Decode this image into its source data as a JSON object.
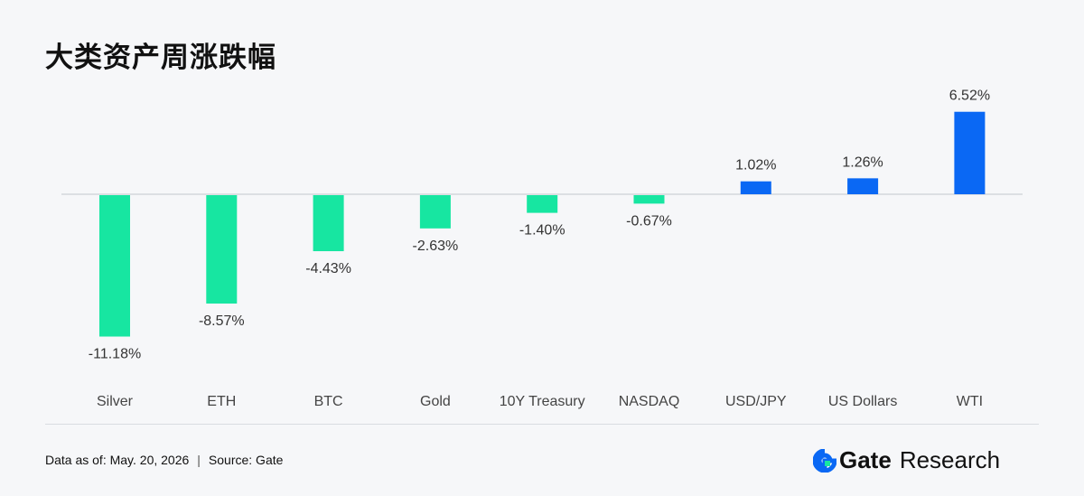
{
  "page": {
    "title": "大类资产周涨跌幅"
  },
  "chart_data": {
    "type": "bar",
    "categories": [
      "Silver",
      "ETH",
      "BTC",
      "Gold",
      "10Y Treasury",
      "NASDAQ",
      "USD/JPY",
      "US Dollars",
      "WTI"
    ],
    "values": [
      -11.18,
      -8.57,
      -4.43,
      -2.63,
      -1.4,
      -0.67,
      1.02,
      1.26,
      6.52
    ],
    "data_labels": [
      "-11.18%",
      "-8.57%",
      "-4.43%",
      "-2.63%",
      "-1.40%",
      "-0.67%",
      "1.02%",
      "1.26%",
      "6.52%"
    ],
    "unit": "%",
    "ylim": [
      -11.18,
      6.52
    ],
    "grid": false,
    "legend": "none",
    "colors": {
      "negative": "#17e6a1",
      "positive": "#0a68f4",
      "zero_line": "#d4d7dc",
      "label_text": "#333333",
      "category_text": "#444444"
    }
  },
  "footer": {
    "data_as_of": "Data as of: May. 20, 2026",
    "separator": "|",
    "source": "Source:  Gate",
    "brand_icon": "gate-logo-icon",
    "brand_name": "Gate",
    "brand_suffix": "Research"
  }
}
